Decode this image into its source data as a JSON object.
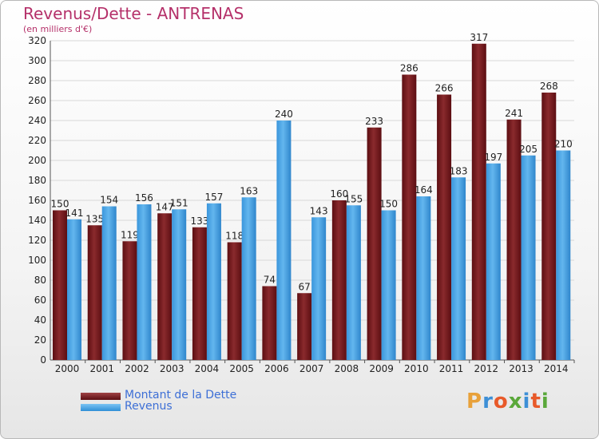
{
  "title": "Revenus/Dette - ANTRENAS",
  "subtitle": "(en milliers d'€)",
  "logo_text": "Proxiti",
  "colors": {
    "title": "#b5316a",
    "dette": "#7a1f22",
    "revenus": "#4da6e8",
    "legend_text": "#3d6fd6",
    "axis_text": "#222222"
  },
  "chart_data": {
    "type": "bar",
    "title": "Revenus/Dette - ANTRENAS",
    "subtitle": "(en milliers d'€)",
    "categories": [
      "2000",
      "2001",
      "2002",
      "2003",
      "2004",
      "2005",
      "2006",
      "2007",
      "2008",
      "2009",
      "2010",
      "2011",
      "2012",
      "2013",
      "2014"
    ],
    "series": [
      {
        "name": "Montant de la Dette",
        "values": [
          150,
          135,
          119,
          147,
          133,
          118,
          74,
          67,
          160,
          233,
          286,
          266,
          317,
          241,
          268
        ]
      },
      {
        "name": "Revenus",
        "values": [
          141,
          154,
          156,
          151,
          157,
          163,
          240,
          143,
          155,
          150,
          164,
          183,
          197,
          205,
          210
        ]
      }
    ],
    "ylim": [
      0,
      320
    ],
    "yticks": [
      0,
      20,
      40,
      60,
      80,
      100,
      120,
      140,
      160,
      180,
      200,
      220,
      240,
      260,
      280,
      300,
      320
    ],
    "grid": true,
    "legend_position": "bottom-left",
    "data_labels": true
  }
}
